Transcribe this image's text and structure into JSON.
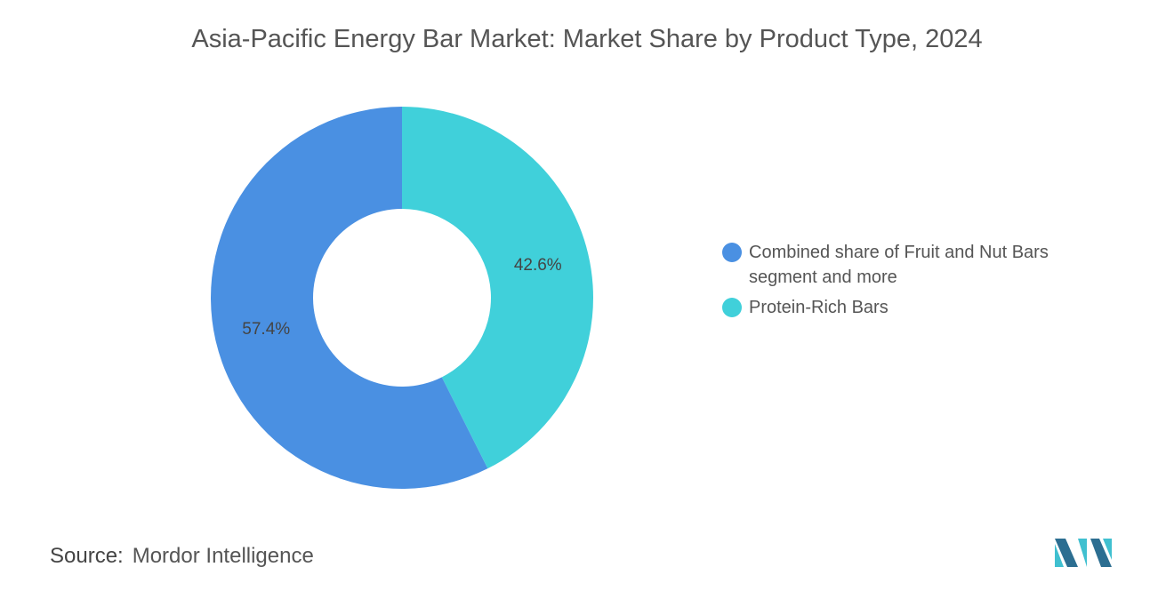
{
  "chart_data": {
    "type": "donut",
    "title": "Asia-Pacific Energy Bar Market: Market Share by Product Type, 2024",
    "series": [
      {
        "name": "Combined share of Fruit and Nut Bars segment and more",
        "color": "#4a90e2",
        "values": [
          57.4
        ],
        "value_labels": [
          "57.4%"
        ]
      },
      {
        "name": "Protein-Rich Bars",
        "color": "#40d0da",
        "values": [
          42.6
        ],
        "value_labels": [
          "42.6%"
        ]
      }
    ],
    "legend": "right",
    "source_label": "Source:",
    "source": "Mordor Intelligence"
  }
}
